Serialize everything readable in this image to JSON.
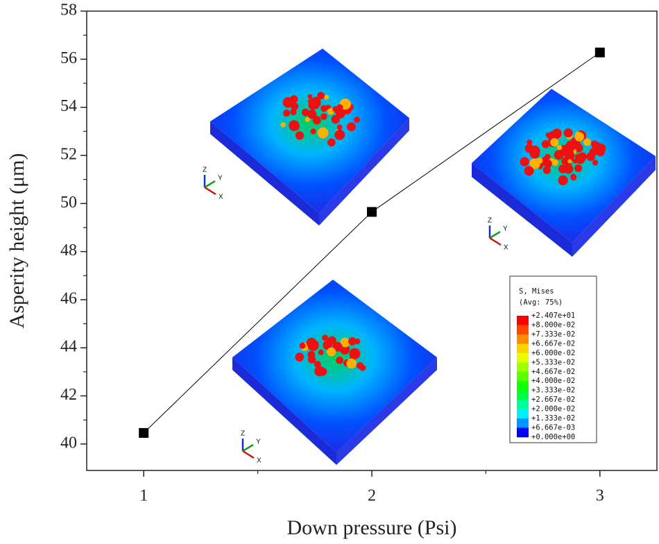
{
  "chart_data": {
    "type": "line",
    "x_label": "Down pressure (Psi)",
    "y_label": "Asperity height (μm)",
    "x": [
      1,
      2,
      3
    ],
    "series": [
      {
        "name": "Asperity height",
        "color": "#000000",
        "values": [
          40.46,
          49.65,
          56.28
        ]
      }
    ],
    "xlim": [
      0.75,
      3.25
    ],
    "xticks": [
      1,
      2,
      3
    ],
    "ylim": [
      38.9,
      58
    ],
    "yticks": [
      40,
      42,
      44,
      46,
      48,
      50,
      52,
      54,
      56,
      58
    ],
    "legend": false,
    "triad_labels": [
      "Z",
      "Y",
      "X"
    ],
    "colorbar": {
      "title": [
        "S, Mises",
        "(Avg: 75%)"
      ],
      "labels": [
        "+2.407e+01",
        "+8.000e-02",
        "+7.333e-02",
        "+6.667e-02",
        "+6.000e-02",
        "+5.333e-02",
        "+4.667e-02",
        "+4.000e-02",
        "+3.333e-02",
        "+2.667e-02",
        "+2.000e-02",
        "+1.333e-02",
        "+6.667e-03",
        "+0.000e+00"
      ],
      "colors": [
        "#ff0000",
        "#ff4600",
        "#ff8c00",
        "#ffd200",
        "#e6ff00",
        "#a0ff00",
        "#5aff00",
        "#14ff00",
        "#00ff3c",
        "#00ff96",
        "#00f0ff",
        "#0096ff",
        "#0000ff"
      ]
    }
  }
}
